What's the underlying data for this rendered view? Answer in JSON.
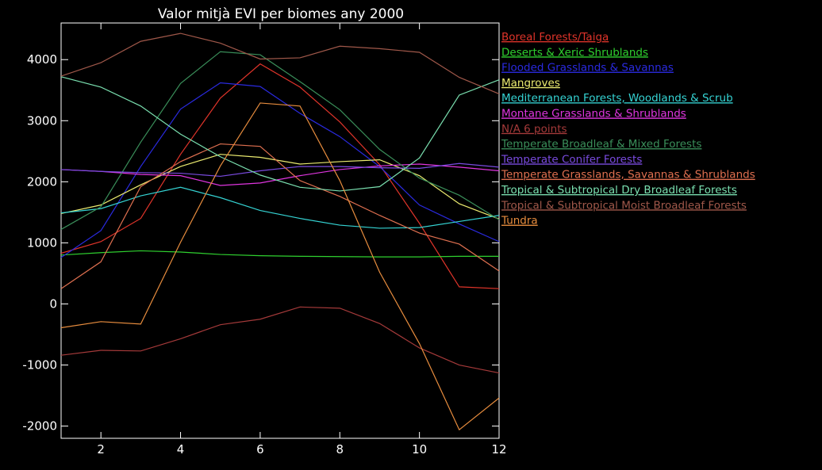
{
  "chart_data": {
    "type": "line",
    "title": "Valor mitjà EVI per biomes any 2000",
    "xlabel": "",
    "ylabel": "",
    "xlim": [
      1,
      12
    ],
    "ylim": [
      -2200,
      4600
    ],
    "x_ticks": [
      2,
      4,
      6,
      8,
      10,
      12
    ],
    "y_ticks": [
      -2000,
      -1000,
      0,
      1000,
      2000,
      3000,
      4000
    ],
    "grid": false,
    "legend_placement": "right",
    "x": [
      1,
      2,
      3,
      4,
      5,
      6,
      7,
      8,
      9,
      10,
      11,
      12
    ],
    "series": [
      {
        "name": "Boreal Forests/Taiga ",
        "color": "#e0342a",
        "values": [
          830,
          1020,
          1400,
          2450,
          3370,
          3930,
          3550,
          2980,
          2280,
          1320,
          280,
          250
        ]
      },
      {
        "name": "Deserts & Xeric Shrublands",
        "color": "#2fd12f",
        "values": [
          800,
          840,
          870,
          850,
          810,
          790,
          780,
          775,
          770,
          770,
          780,
          780
        ]
      },
      {
        "name": "Flooded Grasslands & Savannas",
        "color": "#2a2ae0",
        "values": [
          760,
          1200,
          2250,
          3190,
          3620,
          3560,
          3120,
          2740,
          2250,
          1620,
          1310,
          1020
        ]
      },
      {
        "name": "Mangroves",
        "color": "#ecec70",
        "values": [
          1480,
          1620,
          1950,
          2250,
          2450,
          2400,
          2290,
          2330,
          2360,
          2100,
          1640,
          1390
        ]
      },
      {
        "name": "Mediterranean Forests, Woodlands & Scrub",
        "color": "#35d4d4",
        "values": [
          1490,
          1560,
          1770,
          1910,
          1740,
          1530,
          1400,
          1290,
          1240,
          1250,
          1350,
          1450
        ]
      },
      {
        "name": "Montane Grasslands & Shrublands ",
        "color": "#e035e0",
        "values": [
          2200,
          2170,
          2120,
          2100,
          1940,
          1980,
          2100,
          2200,
          2260,
          2290,
          2240,
          2180
        ]
      },
      {
        "name": "N/A 6 points",
        "color": "#a53a3a",
        "values": [
          -840,
          -760,
          -770,
          -570,
          -340,
          -250,
          -50,
          -70,
          -320,
          -720,
          -1000,
          -1130
        ]
      },
      {
        "name": "Temperate Broadleaf & Mixed Forests",
        "color": "#3a8f5a",
        "values": [
          1220,
          1590,
          2650,
          3610,
          4130,
          4080,
          3640,
          3180,
          2530,
          2060,
          1780,
          1380
        ]
      },
      {
        "name": "Temperate Conifer Forests",
        "color": "#7a4be0",
        "values": [
          2200,
          2170,
          2150,
          2140,
          2090,
          2180,
          2250,
          2250,
          2230,
          2220,
          2300,
          2240
        ]
      },
      {
        "name": " Temperate Grasslands, Savannas & Shrublands",
        "color": "#e07050",
        "values": [
          250,
          690,
          1920,
          2330,
          2620,
          2580,
          2020,
          1760,
          1450,
          1160,
          980,
          540
        ]
      },
      {
        "name": "Tropical & Subtropical Dry Broadleaf Forests",
        "color": "#7ae0b0",
        "values": [
          3720,
          3550,
          3240,
          2780,
          2410,
          2110,
          1910,
          1850,
          1920,
          2390,
          3420,
          3670
        ]
      },
      {
        "name": "Tropical & Subtropical Moist Broadleaf Forests",
        "color": "#a0584a",
        "values": [
          3730,
          3950,
          4300,
          4430,
          4270,
          4010,
          4030,
          4220,
          4180,
          4120,
          3710,
          3440
        ]
      },
      {
        "name": "Tundra",
        "color": "#e88d3e",
        "values": [
          -390,
          -290,
          -330,
          1010,
          2260,
          3290,
          3240,
          2020,
          520,
          -650,
          -2060,
          -1540
        ]
      }
    ]
  }
}
